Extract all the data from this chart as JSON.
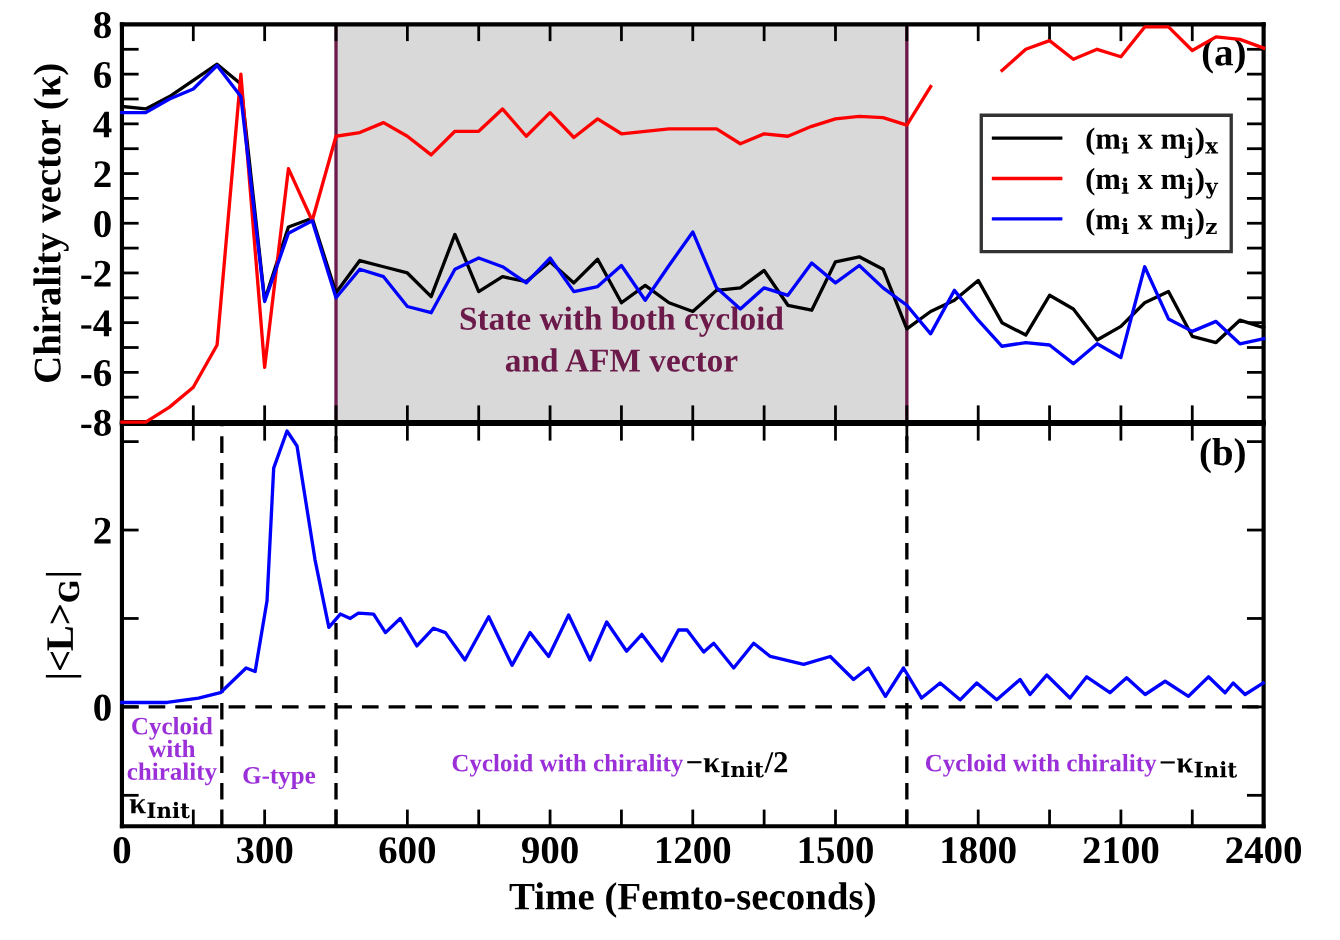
{
  "chart_data": [
    {
      "type": "line",
      "ylabel": "Chirality vector (κ)",
      "x": [
        0,
        50,
        100,
        150,
        200,
        250,
        300,
        350,
        400,
        450,
        500,
        550,
        600,
        650,
        700,
        750,
        800,
        850,
        900,
        950,
        1000,
        1050,
        1100,
        1150,
        1200,
        1250,
        1300,
        1350,
        1400,
        1450,
        1500,
        1550,
        1600,
        1650,
        1700,
        1750,
        1800,
        1850,
        1900,
        1950,
        2000,
        2050,
        2100,
        2150,
        2200,
        2250,
        2300,
        2350,
        2400
      ],
      "series": [
        {
          "name": "(m$_{i}$ x m$_{j}$)$_{x}$",
          "color": "#000000",
          "values": [
            4.7,
            4.6,
            5.1,
            5.75,
            6.4,
            5.6,
            -3.1,
            -0.15,
            0.2,
            -2.8,
            -1.5,
            -1.75,
            -2.0,
            -2.95,
            -0.45,
            -2.75,
            -2.15,
            -2.35,
            -1.55,
            -2.4,
            -1.45,
            -3.2,
            -2.5,
            -3.2,
            -3.55,
            -2.7,
            -2.6,
            -1.9,
            -3.3,
            -3.5,
            -1.55,
            -1.35,
            -1.85,
            -4.25,
            -3.55,
            -3.1,
            -2.3,
            -4.0,
            -4.5,
            -2.9,
            -3.45,
            -4.7,
            -4.15,
            -3.2,
            -2.75,
            -4.55,
            -4.8,
            -3.9,
            -4.2
          ]
        },
        {
          "name": "(m$_{i}$ x m$_{j}$)$_{y}$",
          "color": "#ff0000",
          "values": [
            -8.0,
            -8.0,
            -7.4,
            -6.6,
            -4.9,
            6.0,
            -5.8,
            2.2,
            0.1,
            3.5,
            3.65,
            4.05,
            3.5,
            2.75,
            3.7,
            3.7,
            4.6,
            3.5,
            4.45,
            3.45,
            4.2,
            3.6,
            3.7,
            3.8,
            3.8,
            3.8,
            3.2,
            3.6,
            3.5,
            3.9,
            4.2,
            4.3,
            4.25,
            3.95,
            5.5,
            null,
            null,
            6.15,
            7.0,
            7.35,
            6.6,
            7.0,
            6.7,
            7.9,
            7.9,
            6.95,
            7.5,
            7.4,
            7.05
          ]
        },
        {
          "name": "(m$_{i}$ x m$_{j}$)$_{z}$",
          "color": "#0000ff",
          "values": [
            4.45,
            4.45,
            5.0,
            5.4,
            6.35,
            5.1,
            -3.15,
            -0.4,
            0.1,
            -3.0,
            -1.85,
            -2.15,
            -3.35,
            -3.6,
            -1.85,
            -1.4,
            -1.75,
            -2.4,
            -1.4,
            -2.75,
            -2.55,
            -1.7,
            -3.1,
            -1.7,
            -0.35,
            -2.6,
            -3.45,
            -2.6,
            -2.9,
            -1.6,
            -2.4,
            -1.7,
            -2.6,
            -3.3,
            -4.45,
            -2.7,
            -3.9,
            -4.95,
            -4.8,
            -4.9,
            -5.65,
            -4.85,
            -5.4,
            -1.75,
            -3.85,
            -4.35,
            -3.95,
            -4.85,
            -4.65
          ]
        }
      ],
      "xlim": [
        0,
        2400
      ],
      "xticks": [
        {
          "value": 0,
          "label": null
        },
        {
          "value": 150,
          "label": null
        },
        {
          "value": 300,
          "label": null
        },
        {
          "value": 450,
          "label": null
        },
        {
          "value": 600,
          "label": null
        },
        {
          "value": 750,
          "label": null
        },
        {
          "value": 900,
          "label": null
        },
        {
          "value": 1050,
          "label": null
        },
        {
          "value": 1200,
          "label": null
        },
        {
          "value": 1350,
          "label": null
        },
        {
          "value": 1500,
          "label": null
        },
        {
          "value": 1650,
          "label": null
        },
        {
          "value": 1800,
          "label": null
        },
        {
          "value": 1950,
          "label": null
        },
        {
          "value": 2100,
          "label": null
        },
        {
          "value": 2250,
          "label": null
        },
        {
          "value": 2400,
          "label": null
        }
      ],
      "ylim": [
        -8,
        8
      ],
      "yticks": [
        -8,
        {
          "value": -7,
          "label": null
        },
        -6,
        {
          "value": -5,
          "label": null
        },
        -4,
        {
          "value": -3,
          "label": null
        },
        -2,
        {
          "value": -1,
          "label": null
        },
        0,
        {
          "value": 1,
          "label": null
        },
        2,
        {
          "value": 3,
          "label": null
        },
        4,
        {
          "value": 5,
          "label": null
        },
        6,
        {
          "value": 7,
          "label": null
        },
        8
      ],
      "tick_labels": "y",
      "bands": [
        {
          "axis": "x",
          "from": 450,
          "to": 1650,
          "label": "State with both cycloid\nand AFM vector",
          "color": "#d9d9d9"
        }
      ],
      "ref_lines": [
        {
          "axis": "x",
          "value": 450,
          "color": "#6b1a4a",
          "line_style": "solid"
        },
        {
          "axis": "x",
          "value": 1650,
          "color": "#6b1a4a",
          "line_style": "solid"
        }
      ],
      "annotations": [
        "(a)"
      ],
      "legend": "top right",
      "grid": false,
      "marker": "none",
      "line_style": "solid"
    },
    {
      "type": "line",
      "xlabel": "Time (Femto-seconds)",
      "ylabel": "|<L>$_{G}$|",
      "x": [
        0,
        95,
        161,
        207,
        261,
        280,
        305,
        319,
        347,
        368,
        396,
        406,
        435,
        459,
        480,
        497,
        529,
        554,
        585,
        620,
        655,
        680,
        721,
        771,
        820,
        858,
        897,
        939,
        984,
        1019,
        1061,
        1093,
        1135,
        1170,
        1188,
        1223,
        1244,
        1286,
        1328,
        1363,
        1433,
        1489,
        1538,
        1569,
        1605,
        1643,
        1681,
        1720,
        1762,
        1797,
        1839,
        1888,
        1909,
        1944,
        1993,
        2028,
        2077,
        2112,
        2151,
        2193,
        2242,
        2284,
        2319,
        2336,
        2361,
        2399
      ],
      "series": [
        {
          "color": "#0000ff",
          "values": [
            0.05,
            0.05,
            0.1,
            0.16,
            0.44,
            0.4,
            1.2,
            2.7,
            3.12,
            2.95,
            2.0,
            1.66,
            0.9,
            1.05,
            1.0,
            1.06,
            1.05,
            0.84,
            1.0,
            0.69,
            0.89,
            0.84,
            0.53,
            1.02,
            0.47,
            0.84,
            0.57,
            1.04,
            0.53,
            0.96,
            0.63,
            0.82,
            0.52,
            0.87,
            0.87,
            0.62,
            0.72,
            0.44,
            0.72,
            0.57,
            0.48,
            0.57,
            0.31,
            0.44,
            0.12,
            0.44,
            0.1,
            0.27,
            0.08,
            0.27,
            0.08,
            0.31,
            0.14,
            0.36,
            0.1,
            0.34,
            0.16,
            0.33,
            0.14,
            0.29,
            0.12,
            0.34,
            0.16,
            0.27,
            0.14,
            0.27
          ]
        }
      ],
      "xlim": [
        0,
        2400
      ],
      "xticks": [
        0,
        {
          "value": 150,
          "label": null
        },
        300,
        {
          "value": 450,
          "label": null
        },
        600,
        {
          "value": 750,
          "label": null
        },
        900,
        {
          "value": 1050,
          "label": null
        },
        1200,
        {
          "value": 1350,
          "label": null
        },
        1500,
        {
          "value": 1650,
          "label": null
        },
        1800,
        {
          "value": 1950,
          "label": null
        },
        2100,
        {
          "value": 2250,
          "label": null
        },
        2400
      ],
      "ylim": [
        -1.35,
        3.2
      ],
      "yticks": [
        {
          "value": -1,
          "label": null
        },
        0,
        {
          "value": 1,
          "label": null
        },
        2,
        {
          "value": 3,
          "label": null
        }
      ],
      "ref_lines": [
        {
          "axis": "x",
          "value": 210,
          "color": "#000000",
          "line_style": "dashed"
        },
        {
          "axis": "x",
          "value": 450,
          "color": "#000000",
          "line_style": "dashed"
        },
        {
          "axis": "x",
          "value": 1650,
          "color": "#000000",
          "line_style": "dashed"
        },
        {
          "axis": "y",
          "value": 0,
          "color": "#000000",
          "line_style": "dashed"
        }
      ],
      "annotations": [
        "(b)",
        "Cycloid\nwith\nchirality",
        "κ$_{Init}$",
        "G-type",
        "Cycloid with chirality",
        "−κ$_{Init}$/2",
        "Cycloid with chirality",
        "−κ$_{Init}$"
      ],
      "legend": false,
      "grid": false,
      "marker": "none",
      "line_style": "solid"
    }
  ]
}
